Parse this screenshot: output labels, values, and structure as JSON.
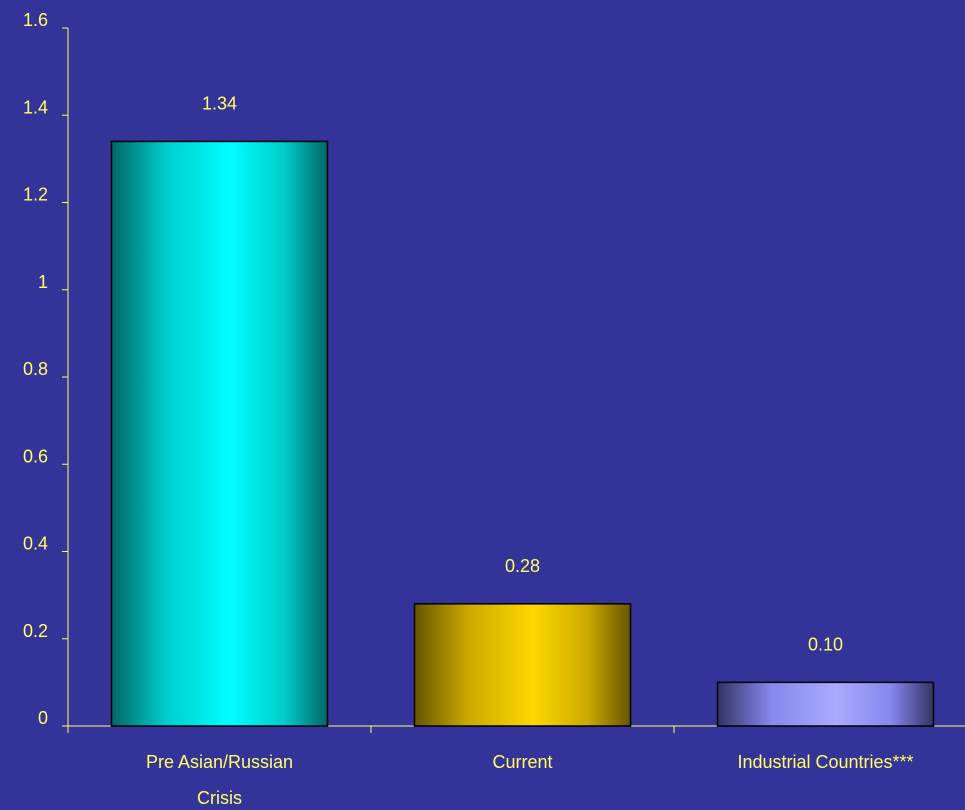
{
  "chart_data": {
    "type": "bar",
    "categories": [
      [
        "Pre Asian/Russian",
        "Crisis"
      ],
      [
        "Current"
      ],
      [
        "Industrial Countries***"
      ]
    ],
    "values": [
      1.34,
      0.28,
      0.1
    ],
    "value_labels": [
      "1.34",
      "0.28",
      "0.10"
    ],
    "ylim": [
      0,
      1.6
    ],
    "yticks": [
      "0",
      "0.2",
      "0.4",
      "0.6",
      "0.8",
      "1",
      "1.2",
      "1.4",
      "1.6"
    ],
    "ytick_values": [
      0,
      0.2,
      0.4,
      0.6,
      0.8,
      1,
      1.2,
      1.4,
      1.6
    ],
    "grid": false,
    "colors": {
      "background": "#333399",
      "axis": "#ffff66",
      "text": "#ffff66",
      "bars": [
        "#00cccc",
        "#ccaa00",
        "#8888ee"
      ],
      "bar_highlights": [
        "#00ffff",
        "#ffd700",
        "#aaaaff"
      ],
      "bar_shadows": [
        "#006666",
        "#665500",
        "#333366"
      ]
    }
  }
}
